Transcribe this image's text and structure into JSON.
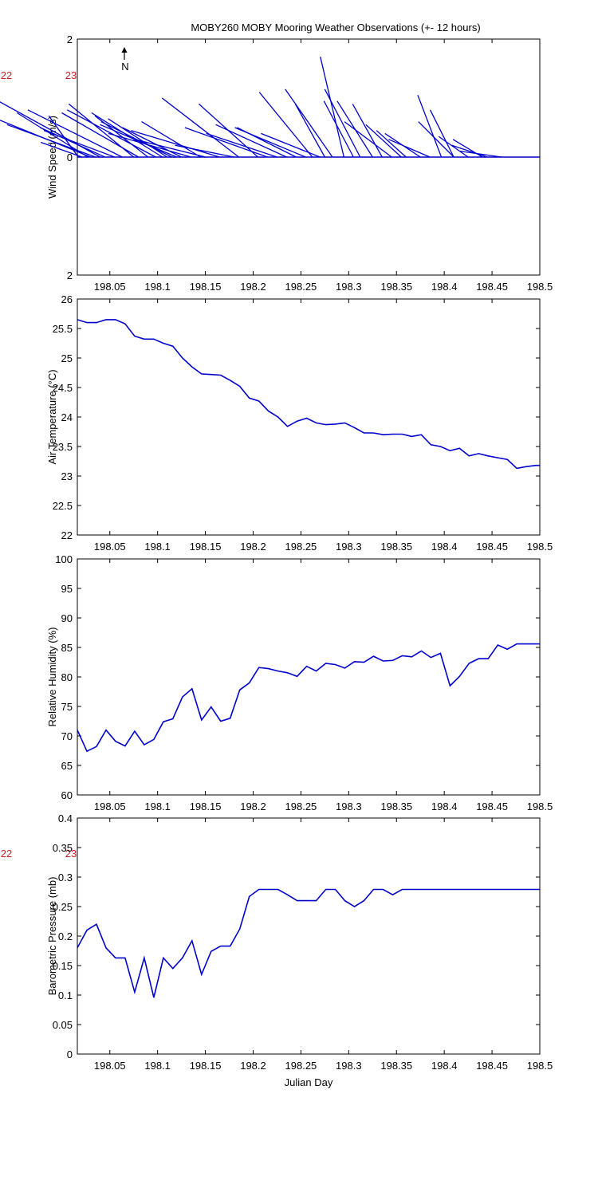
{
  "title": "MOBY260 MOBY Mooring Weather Observations (+- 12 hours)",
  "north_label": "N",
  "margin_labels": [
    "22",
    "23"
  ],
  "colors": {
    "line": "#0000cc",
    "axis": "#000000",
    "margin_label": "#cc2222"
  },
  "chart_data": [
    {
      "type": "line",
      "variant": "stick-plot",
      "ylabel": "Wind Speed (m/s)",
      "xlabel": "",
      "xlim": [
        198.016,
        198.5
      ],
      "ylim": [
        -2,
        2
      ],
      "x_ticks": [
        "198.05",
        "198.1",
        "198.15",
        "198.2",
        "198.25",
        "198.3",
        "198.35",
        "198.4",
        "198.45",
        "198.5"
      ],
      "y_ticks": [
        "2",
        "0",
        "2"
      ],
      "sticks": [
        {
          "x": 198.017,
          "u": 0.05,
          "v": 0.7
        },
        {
          "x": 198.021,
          "u": 0.07,
          "v": 0.25
        },
        {
          "x": 198.027,
          "u": 0.12,
          "v": 0.75
        },
        {
          "x": 198.03,
          "u": 0.16,
          "v": 0.65
        },
        {
          "x": 198.035,
          "u": 0.15,
          "v": 0.55
        },
        {
          "x": 198.04,
          "u": 0.2,
          "v": 1.1
        },
        {
          "x": 198.045,
          "u": 0.11,
          "v": 0.5
        },
        {
          "x": 198.055,
          "u": 0.12,
          "v": 0.45
        },
        {
          "x": 198.063,
          "u": 0.16,
          "v": 0.8
        },
        {
          "x": 198.075,
          "u": 0.11,
          "v": 0.9
        },
        {
          "x": 198.08,
          "u": 0.13,
          "v": 0.75
        },
        {
          "x": 198.09,
          "u": 0.09,
          "v": 0.7
        },
        {
          "x": 198.098,
          "u": 0.15,
          "v": 0.8
        },
        {
          "x": 198.105,
          "u": 0.12,
          "v": 0.75
        },
        {
          "x": 198.11,
          "u": 0.1,
          "v": 0.65
        },
        {
          "x": 198.115,
          "u": 0.12,
          "v": 0.6
        },
        {
          "x": 198.12,
          "u": 0.13,
          "v": 0.55
        },
        {
          "x": 198.125,
          "u": 0.1,
          "v": 0.5
        },
        {
          "x": 198.135,
          "u": 0.14,
          "v": 0.4
        },
        {
          "x": 198.145,
          "u": 0.1,
          "v": 0.6
        },
        {
          "x": 198.15,
          "u": 0.12,
          "v": 0.3
        },
        {
          "x": 198.165,
          "u": 0.15,
          "v": 0.45
        },
        {
          "x": 198.18,
          "u": 0.1,
          "v": 0.2
        },
        {
          "x": 198.185,
          "u": 0.13,
          "v": 1.0
        },
        {
          "x": 198.205,
          "u": 0.1,
          "v": 0.9
        },
        {
          "x": 198.215,
          "u": 0.14,
          "v": 0.5
        },
        {
          "x": 198.225,
          "u": 0.12,
          "v": 0.4
        },
        {
          "x": 198.235,
          "u": 0.12,
          "v": 0.55
        },
        {
          "x": 198.245,
          "u": 0.1,
          "v": 0.5
        },
        {
          "x": 198.255,
          "u": 0.12,
          "v": 0.5
        },
        {
          "x": 198.262,
          "u": 0.09,
          "v": 1.1
        },
        {
          "x": 198.27,
          "u": 0.1,
          "v": 0.4
        },
        {
          "x": 198.275,
          "u": 0.05,
          "v": 0.9
        },
        {
          "x": 198.283,
          "u": 0.08,
          "v": 1.15
        },
        {
          "x": 198.295,
          "u": 0.04,
          "v": 1.7
        },
        {
          "x": 198.305,
          "u": 0.05,
          "v": 0.95
        },
        {
          "x": 198.312,
          "u": 0.06,
          "v": 1.15
        },
        {
          "x": 198.325,
          "u": 0.06,
          "v": 0.95
        },
        {
          "x": 198.335,
          "u": 0.05,
          "v": 0.9
        },
        {
          "x": 198.345,
          "u": 0.08,
          "v": 0.6
        },
        {
          "x": 198.355,
          "u": 0.06,
          "v": 0.55
        },
        {
          "x": 198.36,
          "u": 0.05,
          "v": 0.45
        },
        {
          "x": 198.375,
          "u": 0.06,
          "v": 0.4
        },
        {
          "x": 198.385,
          "u": 0.07,
          "v": 0.3
        },
        {
          "x": 198.397,
          "u": 0.04,
          "v": 1.05
        },
        {
          "x": 198.41,
          "u": 0.04,
          "v": 0.8
        },
        {
          "x": 198.41,
          "u": 0.06,
          "v": 0.6
        },
        {
          "x": 198.425,
          "u": 0.05,
          "v": 0.35
        },
        {
          "x": 198.44,
          "u": 0.05,
          "v": 0.3
        },
        {
          "x": 198.445,
          "u": 0.06,
          "v": 0.2
        },
        {
          "x": 198.46,
          "u": 0.07,
          "v": 0.1
        }
      ]
    },
    {
      "type": "line",
      "ylabel": "Air Temperature (°C)",
      "xlabel": "",
      "xlim": [
        198.016,
        198.5
      ],
      "ylim": [
        22,
        26
      ],
      "x_ticks": [
        "198.05",
        "198.1",
        "198.15",
        "198.2",
        "198.25",
        "198.3",
        "198.35",
        "198.4",
        "198.45",
        "198.5"
      ],
      "y_ticks": [
        "22",
        "22.5",
        "23",
        "23.5",
        "24",
        "24.5",
        "25",
        "25.5",
        "26"
      ],
      "x": [
        198.016,
        198.026,
        198.036,
        198.046,
        198.056,
        198.066,
        198.076,
        198.086,
        198.096,
        198.106,
        198.116,
        198.126,
        198.136,
        198.146,
        198.156,
        198.166,
        198.176,
        198.186,
        198.196,
        198.206,
        198.216,
        198.226,
        198.236,
        198.246,
        198.256,
        198.266,
        198.276,
        198.286,
        198.296,
        198.306,
        198.316,
        198.326,
        198.336,
        198.346,
        198.356,
        198.366,
        198.376,
        198.386,
        198.396,
        198.406,
        198.416,
        198.426,
        198.436,
        198.446,
        198.456,
        198.466,
        198.476,
        198.486,
        198.496,
        198.5
      ],
      "y": [
        25.65,
        25.6,
        25.6,
        25.65,
        25.65,
        25.58,
        25.37,
        25.32,
        25.32,
        25.25,
        25.2,
        25.0,
        24.85,
        24.73,
        24.72,
        24.71,
        24.62,
        24.52,
        24.32,
        24.27,
        24.1,
        24.0,
        23.84,
        23.93,
        23.98,
        23.9,
        23.87,
        23.88,
        23.9,
        23.82,
        23.73,
        23.73,
        23.7,
        23.71,
        23.71,
        23.67,
        23.7,
        23.53,
        23.5,
        23.43,
        23.47,
        23.34,
        23.38,
        23.34,
        23.31,
        23.28,
        23.13,
        23.16,
        23.18,
        23.18
      ]
    },
    {
      "type": "line",
      "ylabel": "Relative Humidity (%)",
      "xlabel": "",
      "xlim": [
        198.016,
        198.5
      ],
      "ylim": [
        60,
        100
      ],
      "x_ticks": [
        "198.05",
        "198.1",
        "198.15",
        "198.2",
        "198.25",
        "198.3",
        "198.35",
        "198.4",
        "198.45",
        "198.5"
      ],
      "y_ticks": [
        "60",
        "65",
        "70",
        "75",
        "80",
        "85",
        "90",
        "95",
        "100"
      ],
      "x": [
        198.016,
        198.026,
        198.036,
        198.046,
        198.056,
        198.066,
        198.076,
        198.086,
        198.096,
        198.106,
        198.116,
        198.126,
        198.136,
        198.146,
        198.156,
        198.166,
        198.176,
        198.186,
        198.196,
        198.206,
        198.216,
        198.226,
        198.236,
        198.246,
        198.256,
        198.266,
        198.276,
        198.286,
        198.296,
        198.306,
        198.316,
        198.326,
        198.336,
        198.346,
        198.356,
        198.366,
        198.376,
        198.386,
        198.396,
        198.406,
        198.416,
        198.426,
        198.436,
        198.446,
        198.456,
        198.466,
        198.476,
        198.486,
        198.496,
        198.5
      ],
      "y": [
        71.0,
        67.4,
        68.2,
        71.0,
        69.1,
        68.3,
        70.8,
        68.5,
        69.4,
        72.4,
        72.9,
        76.6,
        78.0,
        72.7,
        74.9,
        72.5,
        73.0,
        77.8,
        79.0,
        81.6,
        81.4,
        81.0,
        80.7,
        80.1,
        81.8,
        81.0,
        82.3,
        82.1,
        81.5,
        82.6,
        82.5,
        83.5,
        82.7,
        82.8,
        83.6,
        83.4,
        84.4,
        83.3,
        84.0,
        78.5,
        80.1,
        82.3,
        83.1,
        83.1,
        85.4,
        84.7,
        85.6,
        85.6,
        85.6,
        85.6
      ]
    },
    {
      "type": "line",
      "ylabel": "Barometric Pressure (mb)",
      "xlabel": "Julian Day",
      "xlim": [
        198.016,
        198.5
      ],
      "ylim": [
        0,
        0.4
      ],
      "x_ticks": [
        "198.05",
        "198.1",
        "198.15",
        "198.2",
        "198.25",
        "198.3",
        "198.35",
        "198.4",
        "198.45",
        "198.5"
      ],
      "y_ticks": [
        "0",
        "0.05",
        "0.1",
        "0.15",
        "0.2",
        "0.25",
        "0.3",
        "0.35",
        "0.4"
      ],
      "x": [
        198.016,
        198.026,
        198.036,
        198.046,
        198.056,
        198.066,
        198.076,
        198.086,
        198.096,
        198.106,
        198.116,
        198.126,
        198.136,
        198.146,
        198.156,
        198.166,
        198.176,
        198.186,
        198.196,
        198.206,
        198.216,
        198.226,
        198.236,
        198.246,
        198.256,
        198.266,
        198.276,
        198.286,
        198.296,
        198.306,
        198.316,
        198.326,
        198.336,
        198.346,
        198.356,
        198.366,
        198.376,
        198.386,
        198.396,
        198.406,
        198.416,
        198.426,
        198.436,
        198.446,
        198.456,
        198.466,
        198.476,
        198.486,
        198.496,
        198.5
      ],
      "y": [
        0.18,
        0.21,
        0.22,
        0.18,
        0.163,
        0.163,
        0.105,
        0.163,
        0.096,
        0.163,
        0.145,
        0.163,
        0.192,
        0.135,
        0.174,
        0.183,
        0.183,
        0.212,
        0.267,
        0.279,
        0.279,
        0.279,
        0.27,
        0.26,
        0.26,
        0.26,
        0.279,
        0.279,
        0.26,
        0.25,
        0.26,
        0.279,
        0.279,
        0.27,
        0.279,
        0.279,
        0.279,
        0.279,
        0.279,
        0.279,
        0.279,
        0.279,
        0.279,
        0.279,
        0.279,
        0.279,
        0.279,
        0.279,
        0.279,
        0.279
      ]
    }
  ]
}
